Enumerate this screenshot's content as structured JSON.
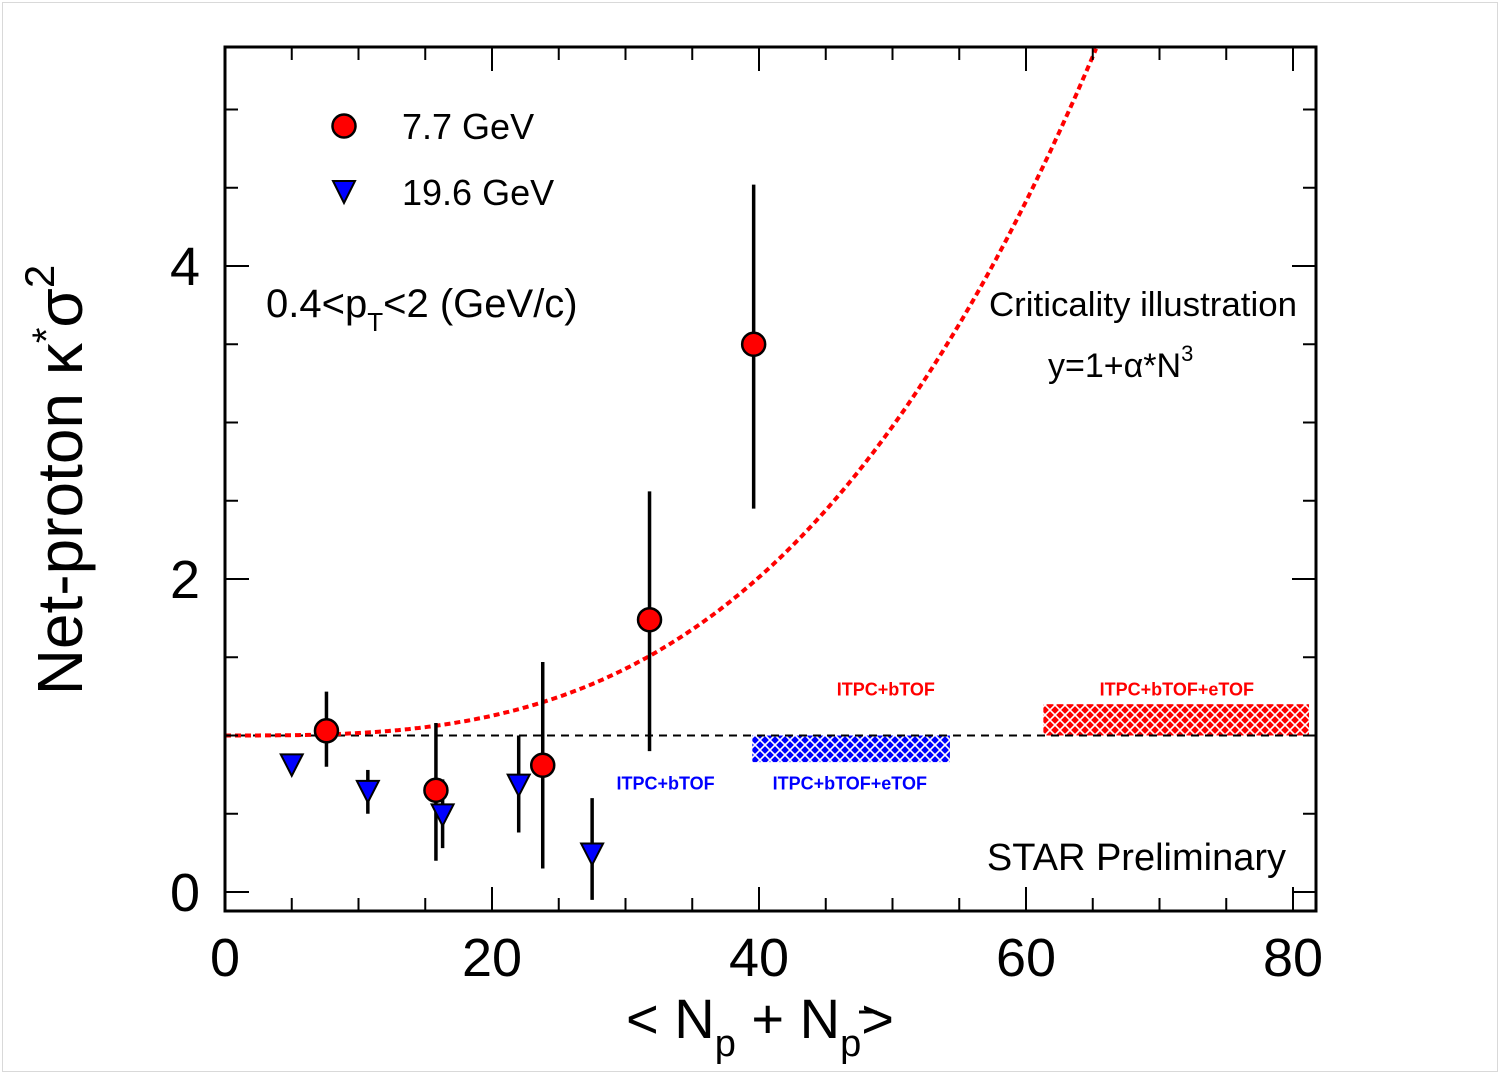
{
  "chart_data": {
    "type": "scatter",
    "xlim": [
      0,
      82
    ],
    "ylim": [
      -0.12,
      5.35
    ],
    "x_ticks": [
      0,
      20,
      40,
      60,
      80
    ],
    "y_ticks": [
      0,
      2,
      4
    ],
    "xlabel": {
      "lt": "< N",
      "sub1": "p",
      "plus": " + N",
      "sub2": "p",
      "gt": ">"
    },
    "ylabel": {
      "prefix": "Net-proton  κ",
      "star": "*",
      "sigma": "σ",
      "sup": "2"
    },
    "legend": [
      {
        "label": "7.7 GeV",
        "marker": "circle",
        "color": "#ff0000"
      },
      {
        "label": "19.6 GeV",
        "marker": "triangle-down",
        "color": "#0000ff"
      }
    ],
    "series": [
      {
        "name": "7.7 GeV",
        "marker": "circle",
        "color": "#ff0000",
        "points": [
          {
            "x": 7.6,
            "y": 1.03,
            "ylo": 0.8,
            "yhi": 1.28
          },
          {
            "x": 15.8,
            "y": 0.65,
            "ylo": 0.2,
            "yhi": 1.08
          },
          {
            "x": 23.8,
            "y": 0.81,
            "ylo": 0.15,
            "yhi": 1.47
          },
          {
            "x": 31.8,
            "y": 1.74,
            "ylo": 0.9,
            "yhi": 2.56
          },
          {
            "x": 39.6,
            "y": 3.5,
            "ylo": 2.45,
            "yhi": 4.52
          }
        ]
      },
      {
        "name": "19.6 GeV",
        "marker": "triangle-down",
        "color": "#0000ff",
        "points": [
          {
            "x": 5.0,
            "y": 0.82,
            "ylo": 0.82,
            "yhi": 0.82
          },
          {
            "x": 10.7,
            "y": 0.65,
            "ylo": 0.5,
            "yhi": 0.78
          },
          {
            "x": 16.3,
            "y": 0.5,
            "ylo": 0.28,
            "yhi": 0.72
          },
          {
            "x": 22.0,
            "y": 0.69,
            "ylo": 0.38,
            "yhi": 1.0
          },
          {
            "x": 27.5,
            "y": 0.25,
            "ylo": -0.05,
            "yhi": 0.6
          }
        ]
      }
    ],
    "reference_line": {
      "y": 1.0,
      "style": "dashed",
      "color": "#000000"
    },
    "curve": {
      "formula": "y=1+α*N^3",
      "alpha": 1.58e-05,
      "color": "#ff0000",
      "style": "dotted"
    },
    "bands": [
      {
        "x0": 39.5,
        "x1": 54.3,
        "y0": 0.83,
        "y1": 1.0,
        "color": "#0000ff"
      },
      {
        "x0": 61.3,
        "x1": 81.2,
        "y0": 1.0,
        "y1": 1.2,
        "color": "#ff0000"
      }
    ],
    "band_labels": [
      {
        "text": "ITPC+bTOF",
        "color": "#0000ff",
        "x": 33.0,
        "y": 0.7
      },
      {
        "text": "ITPC+bTOF+eTOF",
        "color": "#0000ff",
        "x": 46.8,
        "y": 0.7
      },
      {
        "text": "ITPC+bTOF",
        "color": "#ff0000",
        "x": 49.5,
        "y": 1.3
      },
      {
        "text": "ITPC+bTOF+eTOF",
        "color": "#ff0000",
        "x": 71.3,
        "y": 1.3
      }
    ],
    "annotations": {
      "pt_range": {
        "prefix": "0.4<p",
        "sub": "T",
        "suffix": "<2 (GeV/c)"
      },
      "criticality_title": "Criticality illustration",
      "criticality_formula": {
        "main": "y=1+α*N",
        "sup": "3"
      },
      "preliminary": "STAR Preliminary"
    }
  }
}
